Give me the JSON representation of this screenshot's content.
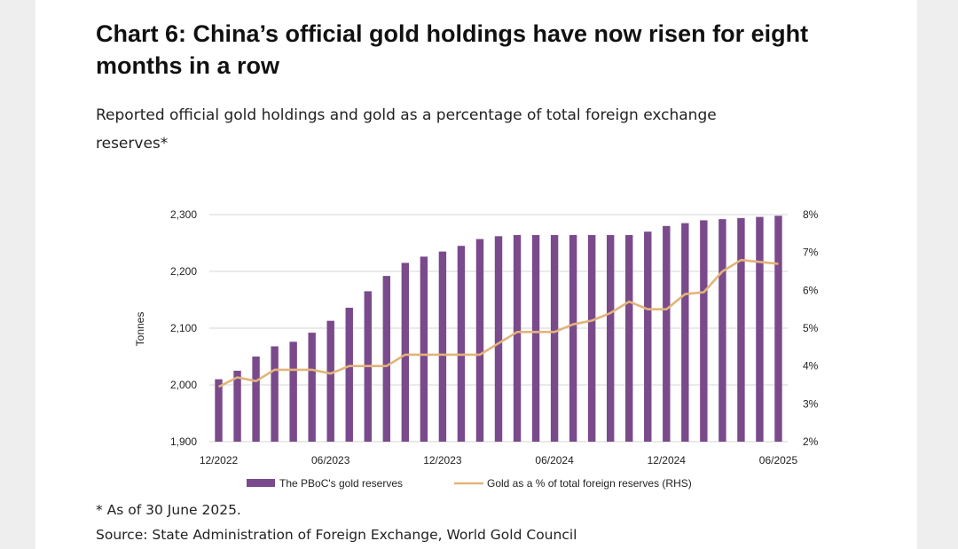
{
  "title": "Chart 6: China’s official gold holdings have now risen for eight months in a row",
  "subtitle": "Reported official gold holdings and gold as a percentage of total foreign exchange reserves*",
  "footnote": "* As of 30 June 2025.",
  "source": "Source: State Administration of Foreign Exchange, World Gold Council",
  "chart_data": {
    "type": "bar",
    "y_left": {
      "label": "Tonnes",
      "range": [
        1900,
        2300
      ],
      "ticks": [
        "1,900",
        "2,000",
        "2,100",
        "2,200",
        "2,300"
      ]
    },
    "y_right": {
      "range": [
        2,
        8
      ],
      "ticks": [
        "2%",
        "3%",
        "4%",
        "5%",
        "6%",
        "7%",
        "8%"
      ]
    },
    "x_tick_labels": [
      {
        "index": 0,
        "label": "12/2022"
      },
      {
        "index": 6,
        "label": "06/2023"
      },
      {
        "index": 12,
        "label": "12/2023"
      },
      {
        "index": 18,
        "label": "06/2024"
      },
      {
        "index": 24,
        "label": "12/2024"
      },
      {
        "index": 30,
        "label": "06/2025"
      }
    ],
    "categories": [
      "12/2022",
      "01/2023",
      "02/2023",
      "03/2023",
      "04/2023",
      "05/2023",
      "06/2023",
      "07/2023",
      "08/2023",
      "09/2023",
      "10/2023",
      "11/2023",
      "12/2023",
      "01/2024",
      "02/2024",
      "03/2024",
      "04/2024",
      "05/2024",
      "06/2024",
      "07/2024",
      "08/2024",
      "09/2024",
      "10/2024",
      "11/2024",
      "12/2024",
      "01/2025",
      "02/2025",
      "03/2025",
      "04/2025",
      "05/2025",
      "06/2025"
    ],
    "grid": "horizontal at left-axis ticks",
    "legend_position": "bottom",
    "series": [
      {
        "name": "The PBoC's gold reserves",
        "type": "bar",
        "axis": "left",
        "color": "#7a4a8c",
        "values": [
          2010,
          2025,
          2050,
          2068,
          2076,
          2092,
          2113,
          2136,
          2165,
          2192,
          2215,
          2226,
          2235,
          2245,
          2257,
          2262,
          2264,
          2264,
          2264,
          2264,
          2264,
          2264,
          2264,
          2270,
          2280,
          2285,
          2290,
          2292,
          2294,
          2296,
          2298
        ]
      },
      {
        "name": "Gold as a % of total foreign reserves (RHS)",
        "type": "line",
        "axis": "right",
        "color": "#e2b37a",
        "values": [
          3.45,
          3.7,
          3.6,
          3.9,
          3.9,
          3.9,
          3.8,
          4.0,
          4.0,
          4.0,
          4.3,
          4.3,
          4.3,
          4.3,
          4.3,
          4.6,
          4.9,
          4.9,
          4.9,
          5.1,
          5.2,
          5.4,
          5.7,
          5.5,
          5.5,
          5.9,
          5.95,
          6.5,
          6.8,
          6.75,
          6.7
        ]
      }
    ]
  }
}
